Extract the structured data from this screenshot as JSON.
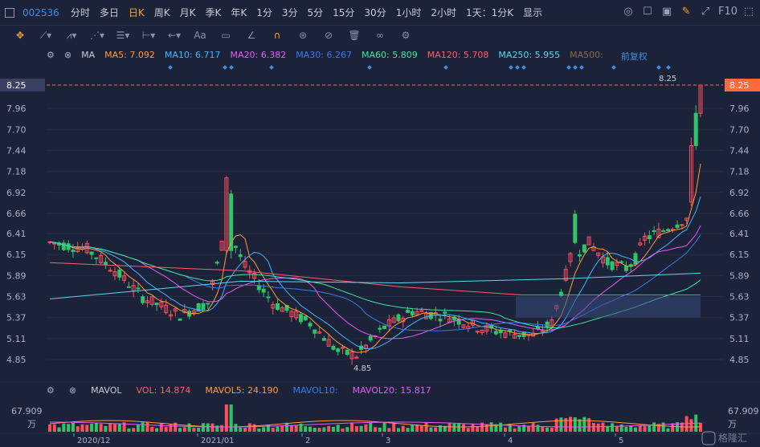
{
  "toolbar": {
    "stock_code": "002536",
    "periods": [
      "分时",
      "多日",
      "日K",
      "周K",
      "月K",
      "季K",
      "年K",
      "1分",
      "3分",
      "5分",
      "15分",
      "30分",
      "1小时",
      "2小时",
      "1天：1分K",
      "显示"
    ],
    "active_period": "日K",
    "right_label": "F10"
  },
  "drawing_tools": [
    "move-icon",
    "line-icon",
    "channel-icon",
    "wave-icon",
    "fib-icon",
    "range-icon",
    "arrow-icon",
    "text-icon",
    "note-icon",
    "angle-icon",
    "magnet-icon",
    "lock-icon",
    "hide-icon",
    "trash-icon",
    "link-icon",
    "settings-icon"
  ],
  "drawing_text_tool": "Aa",
  "ma_legend": {
    "label": "MA",
    "items": [
      {
        "text": "MA5: 7.092",
        "color": "#ff9b3d"
      },
      {
        "text": "MA10: 6.717",
        "color": "#3db8ff"
      },
      {
        "text": "MA20: 6.382",
        "color": "#e75cf5"
      },
      {
        "text": "MA30: 6.267",
        "color": "#3a7bf0"
      },
      {
        "text": "MA60: 5.809",
        "color": "#3ee6a1"
      },
      {
        "text": "MA120: 5.708",
        "color": "#ff5e6d"
      },
      {
        "text": "MA250: 5.955",
        "color": "#5ad8f0"
      },
      {
        "text": "MA500:",
        "color": "#8a6e4a"
      }
    ],
    "adj_label": "前复权"
  },
  "price_axis": {
    "ticks": [
      "8.25",
      "7.96",
      "7.70",
      "7.44",
      "7.18",
      "6.92",
      "6.66",
      "6.41",
      "6.15",
      "5.89",
      "5.63",
      "5.37",
      "5.11",
      "4.85"
    ],
    "current_price": "8.25",
    "high_label": "8.25",
    "low_label": "4.85"
  },
  "date_axis": [
    "2020/12",
    "2021/01",
    "2",
    "3",
    "4",
    "5"
  ],
  "vol_legend": {
    "label": "MAVOL",
    "items": [
      {
        "text": "VOL: 14.874",
        "color": "#ff5e6d"
      },
      {
        "text": "MAVOL5: 24.190",
        "color": "#ff9b3d"
      },
      {
        "text": "MAVOL10:",
        "color": "#3a7bf0"
      },
      {
        "text": "MAVOL20: 15.817",
        "color": "#e75cf5"
      }
    ],
    "axis_top": "67.909",
    "axis_unit": "万"
  },
  "watermark": "格隆汇",
  "colors": {
    "up": "#ff4d5e",
    "down": "#2ec46b",
    "accent": "#f5a623",
    "background": "#1c2237"
  }
}
